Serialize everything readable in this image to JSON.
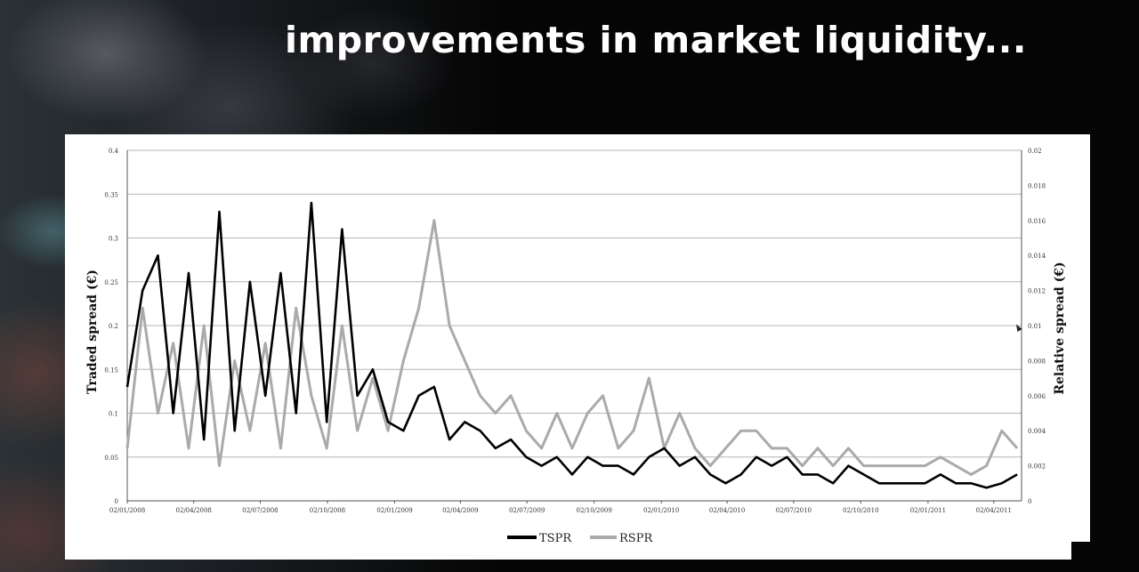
{
  "slide": {
    "headline": "improvements in market liquidity..."
  },
  "chart_data": {
    "type": "line",
    "xlabel": "",
    "ylabel": "Traded spread (€)",
    "y2label": "Relative spread (€)",
    "ylim": [
      0,
      0.4
    ],
    "y2lim": [
      0,
      0.02
    ],
    "y_ticks": [
      "0",
      "0.05",
      "0.1",
      "0.15",
      "0.2",
      "0.25",
      "0.3",
      "0.35",
      "0.4"
    ],
    "y2_ticks": [
      "0",
      "0.002",
      "0.004",
      "0.006",
      "0.008",
      "0.01",
      "0.012",
      "0.014",
      "0.016",
      "0.018",
      "0.02"
    ],
    "x_ticks": [
      "02/01/2008",
      "02/04/2008",
      "02/07/2008",
      "02/10/2008",
      "02/01/2009",
      "02/04/2009",
      "02/07/2009",
      "02/10/2009",
      "02/01/2010",
      "02/04/2010",
      "02/07/2010",
      "02/10/2010",
      "02/01/2011",
      "02/04/2011"
    ],
    "grid": true,
    "legend": "bottom-center",
    "colors": {
      "TSPR": "#000000",
      "RSPR": "#aaaaaa"
    },
    "series": [
      {
        "name": "TSPR",
        "axis": "left",
        "x": [
          "2008-01-02",
          "2008-01-23",
          "2008-02-13",
          "2008-03-05",
          "2008-03-26",
          "2008-04-16",
          "2008-05-07",
          "2008-05-28",
          "2008-06-18",
          "2008-07-09",
          "2008-07-30",
          "2008-08-20",
          "2008-09-10",
          "2008-10-01",
          "2008-10-22",
          "2008-11-12",
          "2008-12-03",
          "2008-12-24",
          "2009-01-14",
          "2009-02-04",
          "2009-02-25",
          "2009-03-18",
          "2009-04-08",
          "2009-04-29",
          "2009-05-20",
          "2009-06-10",
          "2009-07-01",
          "2009-07-22",
          "2009-08-12",
          "2009-09-02",
          "2009-09-23",
          "2009-10-14",
          "2009-11-04",
          "2009-11-25",
          "2009-12-16",
          "2010-01-06",
          "2010-01-27",
          "2010-02-17",
          "2010-03-10",
          "2010-03-31",
          "2010-04-21",
          "2010-05-12",
          "2010-06-02",
          "2010-06-23",
          "2010-07-14",
          "2010-08-04",
          "2010-08-25",
          "2010-09-15",
          "2010-10-06",
          "2010-10-27",
          "2010-11-17",
          "2010-12-08",
          "2010-12-29",
          "2011-01-19",
          "2011-02-09",
          "2011-03-02",
          "2011-03-23",
          "2011-04-13",
          "2011-05-04"
        ],
        "y": [
          0.13,
          0.24,
          0.28,
          0.1,
          0.26,
          0.07,
          0.33,
          0.08,
          0.25,
          0.12,
          0.26,
          0.1,
          0.34,
          0.09,
          0.31,
          0.12,
          0.15,
          0.09,
          0.08,
          0.12,
          0.13,
          0.07,
          0.09,
          0.08,
          0.06,
          0.07,
          0.05,
          0.04,
          0.05,
          0.03,
          0.05,
          0.04,
          0.04,
          0.03,
          0.05,
          0.06,
          0.04,
          0.05,
          0.03,
          0.02,
          0.03,
          0.05,
          0.04,
          0.05,
          0.03,
          0.03,
          0.02,
          0.04,
          0.03,
          0.02,
          0.02,
          0.02,
          0.02,
          0.03,
          0.02,
          0.02,
          0.015,
          0.02,
          0.03
        ]
      },
      {
        "name": "RSPR",
        "axis": "right",
        "x": [
          "2008-01-02",
          "2008-01-23",
          "2008-02-13",
          "2008-03-05",
          "2008-03-26",
          "2008-04-16",
          "2008-05-07",
          "2008-05-28",
          "2008-06-18",
          "2008-07-09",
          "2008-07-30",
          "2008-08-20",
          "2008-09-10",
          "2008-10-01",
          "2008-10-22",
          "2008-11-12",
          "2008-12-03",
          "2008-12-24",
          "2009-01-14",
          "2009-02-04",
          "2009-02-25",
          "2009-03-18",
          "2009-04-08",
          "2009-04-29",
          "2009-05-20",
          "2009-06-10",
          "2009-07-01",
          "2009-07-22",
          "2009-08-12",
          "2009-09-02",
          "2009-09-23",
          "2009-10-14",
          "2009-11-04",
          "2009-11-25",
          "2009-12-16",
          "2010-01-06",
          "2010-01-27",
          "2010-02-17",
          "2010-03-10",
          "2010-03-31",
          "2010-04-21",
          "2010-05-12",
          "2010-06-02",
          "2010-06-23",
          "2010-07-14",
          "2010-08-04",
          "2010-08-25",
          "2010-09-15",
          "2010-10-06",
          "2010-10-27",
          "2010-11-17",
          "2010-12-08",
          "2010-12-29",
          "2011-01-19",
          "2011-02-09",
          "2011-03-02",
          "2011-03-23",
          "2011-04-13",
          "2011-05-04"
        ],
        "y": [
          0.003,
          0.011,
          0.005,
          0.009,
          0.003,
          0.01,
          0.002,
          0.008,
          0.004,
          0.009,
          0.003,
          0.011,
          0.006,
          0.003,
          0.01,
          0.004,
          0.007,
          0.004,
          0.008,
          0.011,
          0.016,
          0.01,
          0.008,
          0.006,
          0.005,
          0.006,
          0.004,
          0.003,
          0.005,
          0.003,
          0.005,
          0.006,
          0.003,
          0.004,
          0.007,
          0.003,
          0.005,
          0.003,
          0.002,
          0.003,
          0.004,
          0.004,
          0.003,
          0.003,
          0.002,
          0.003,
          0.002,
          0.003,
          0.002,
          0.002,
          0.002,
          0.002,
          0.002,
          0.0025,
          0.002,
          0.0015,
          0.002,
          0.004,
          0.003
        ]
      }
    ]
  }
}
